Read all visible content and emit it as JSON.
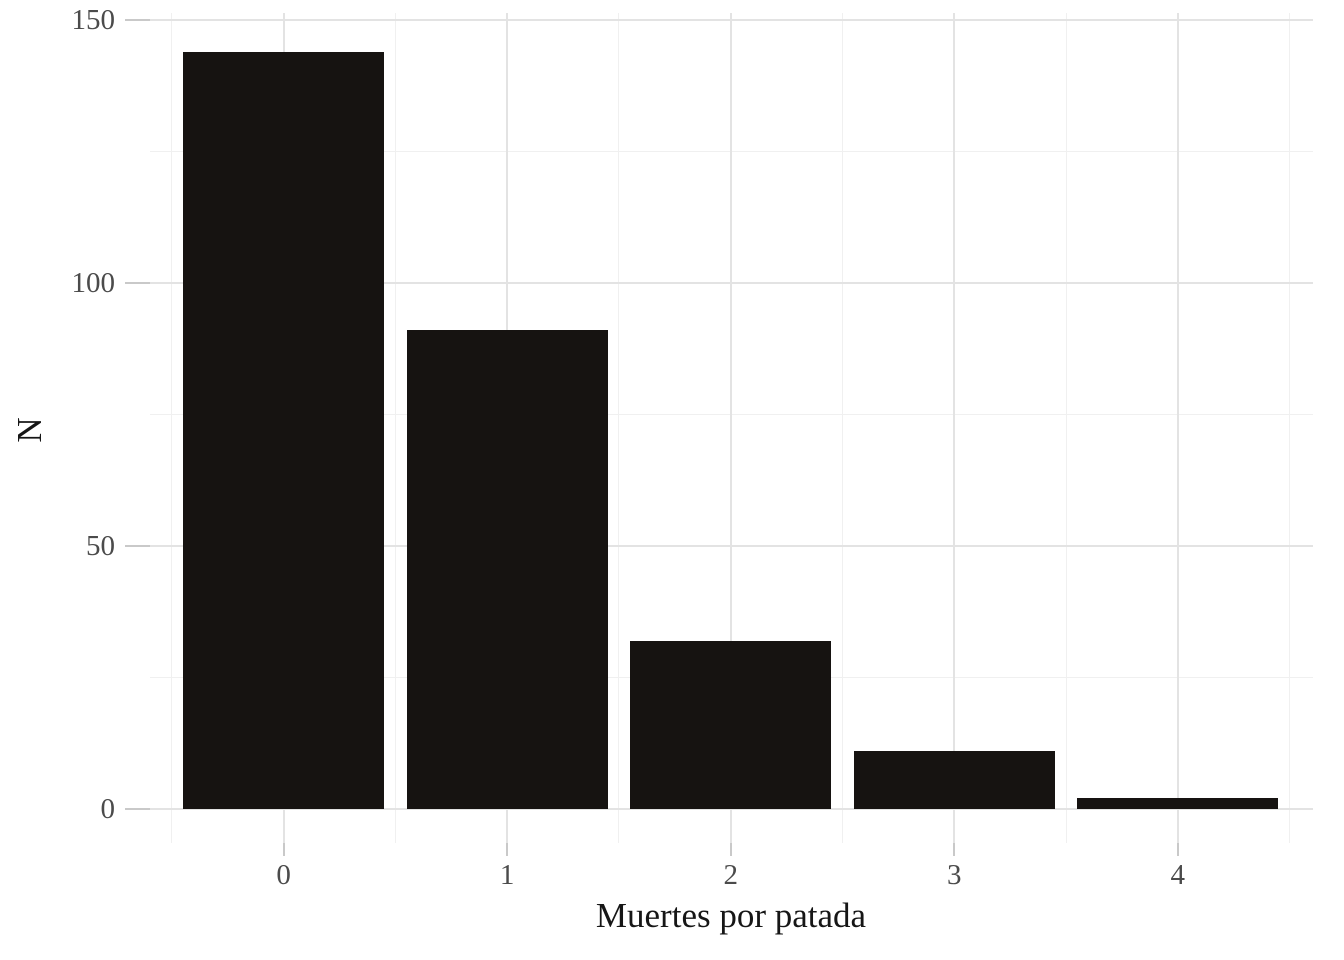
{
  "chart_data": {
    "type": "bar",
    "title": "",
    "categories": [
      "0",
      "1",
      "2",
      "3",
      "4"
    ],
    "values": [
      144,
      91,
      32,
      11,
      2
    ],
    "xlabel": "Muertes por patada",
    "ylabel": "N",
    "ylim": [
      0,
      150
    ],
    "yticks": [
      0,
      50,
      100,
      150
    ],
    "yticks_minor": [
      25,
      75,
      125
    ],
    "grid": "on",
    "legend": "none",
    "colors": {
      "bar": "#161311",
      "grid_major": "#e3e3e3",
      "grid_minor": "#f0f0f0",
      "tick_mark": "#c9c9c9",
      "tick_label": "#4b4b4b",
      "axis_title": "#161616",
      "background": "#ffffff"
    }
  }
}
